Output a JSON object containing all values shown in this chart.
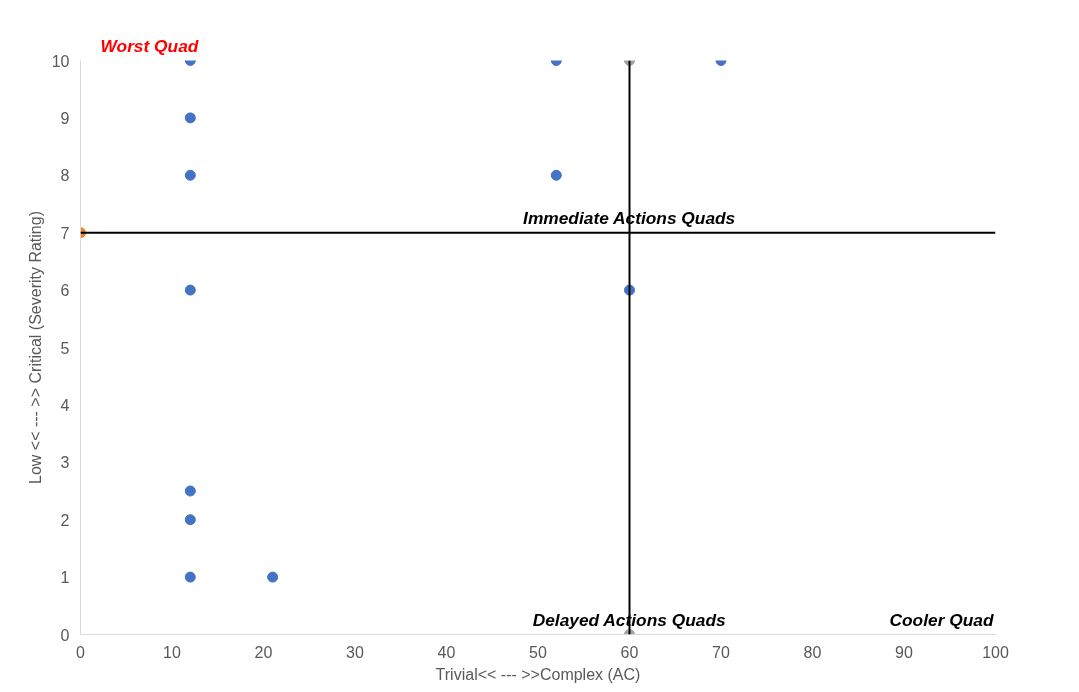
{
  "chart_data": {
    "type": "scatter",
    "xlabel": "Trivial<< --- >>Complex (AC)",
    "ylabel": "Low << --- >> Critical (Severity Rating)",
    "xlim": [
      0,
      100
    ],
    "xticks": [
      0,
      10,
      20,
      30,
      40,
      50,
      60,
      70,
      80,
      90,
      100
    ],
    "ylim": [
      0,
      10
    ],
    "yticks": [
      0,
      1,
      2,
      3,
      4,
      5,
      6,
      7,
      8,
      9,
      10
    ],
    "grid": false,
    "marker": "circle",
    "series": [
      {
        "color": "#4472c4",
        "x": [
          12,
          12,
          12,
          12,
          12,
          12,
          12,
          21,
          52,
          52,
          60,
          70
        ],
        "values": [
          10,
          9,
          8,
          6,
          2.5,
          2,
          1,
          1,
          10,
          8,
          6,
          10
        ]
      },
      {
        "color": "#ed7d31",
        "x": [
          0
        ],
        "values": [
          7
        ]
      },
      {
        "color": "#a5a5a5",
        "x": [
          60,
          60
        ],
        "values": [
          10,
          0
        ]
      }
    ],
    "ref_lines": [
      {
        "axis": "y",
        "value": 7,
        "color": "#000000"
      },
      {
        "axis": "x",
        "value": 60,
        "color": "#000000"
      }
    ],
    "annotations": [
      "Worst Quad",
      "Immediate Actions Quads",
      "Delayed Actions Quads",
      "Cooler Quad"
    ]
  }
}
